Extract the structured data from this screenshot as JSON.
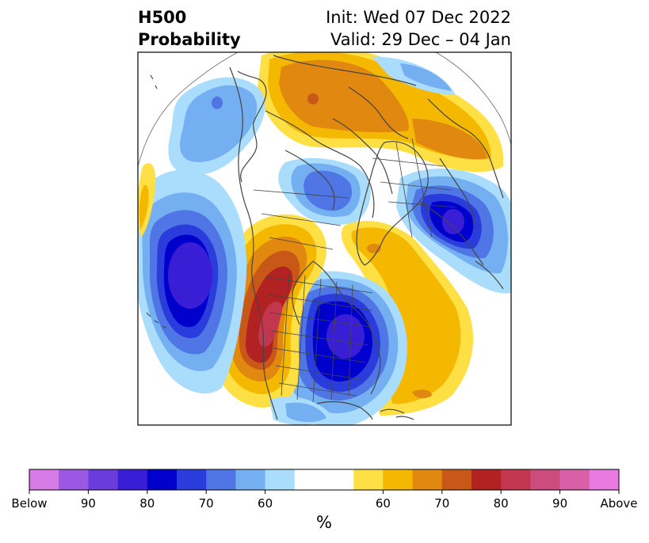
{
  "title": {
    "left_line1": "H500",
    "left_line2": "Probability",
    "right_line1": "Init: Wed 07 Dec 2022",
    "right_line2": "Valid: 29 Dec – 04 Jan"
  },
  "colorbar": {
    "unit": "%",
    "colors": [
      "#d67ae6",
      "#9b59e3",
      "#6a3ddb",
      "#3a1ed6",
      "#0000cc",
      "#2a3cdc",
      "#4f76e4",
      "#74aff2",
      "#aadcfb",
      "#ffffff",
      "#ffffff",
      "#ffe044",
      "#f5b800",
      "#e08810",
      "#c85818",
      "#b32222",
      "#c2374e",
      "#cc4c7e",
      "#d95fa8",
      "#e87ae0"
    ],
    "tick_labels": [
      "Below",
      "90",
      "80",
      "70",
      "60",
      "60",
      "70",
      "80",
      "90",
      "Above"
    ]
  },
  "map": {
    "colors": {
      "blue_light": "#aadcfb",
      "blue_mid": "#74aff2",
      "blue_med": "#4f76e4",
      "blue_strong": "#2a3cdc",
      "blue_deep": "#0000cc",
      "blue_purple": "#3a1ed6",
      "yellow": "#ffe044",
      "gold": "#f5b800",
      "orange": "#e08810",
      "rust": "#c85818",
      "red": "#b32222",
      "rose": "#c2374e",
      "outline": "#444444"
    }
  }
}
